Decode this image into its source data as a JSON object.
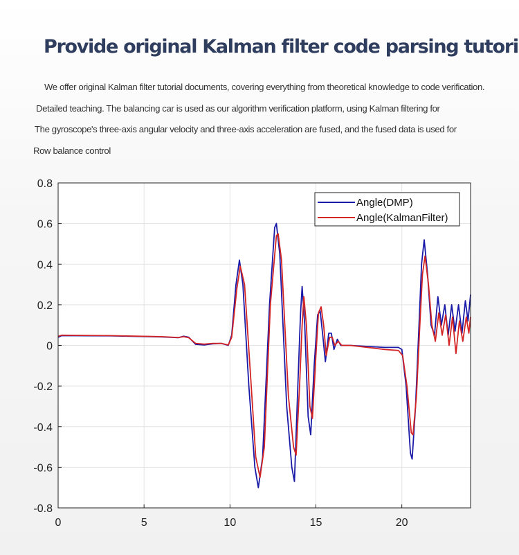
{
  "heading": "Provide original Kalman filter code parsing tutorial",
  "description": [
    "We offer original Kalman filter tutorial documents, covering everything from theoretical knowledge to code verification.",
    "Detailed teaching. The balancing car is used as our algorithm verification platform, using Kalman filtering for",
    "The gyroscope's three-axis angular velocity and three-axis acceleration are fused, and the fused data is used for",
    "Row balance control"
  ],
  "chart_data": {
    "type": "line",
    "title": "",
    "xlabel": "",
    "ylabel": "",
    "xlim": [
      0,
      24
    ],
    "ylim": [
      -0.8,
      0.8
    ],
    "x_ticks": [
      "0",
      "5",
      "10",
      "15",
      "20"
    ],
    "y_ticks": [
      "0.8",
      "0.6",
      "0.4",
      "0.2",
      "0",
      "-0.2",
      "-0.4",
      "-0.6",
      "-0.8"
    ],
    "grid": true,
    "legend_position": "top-right",
    "series": [
      {
        "name": "Angle(DMP)",
        "color": "#1a1aa8",
        "points": [
          [
            0,
            0.04
          ],
          [
            0.2,
            0.048
          ],
          [
            3,
            0.047
          ],
          [
            6,
            0.042
          ],
          [
            7,
            0.038
          ],
          [
            7.3,
            0.045
          ],
          [
            7.6,
            0.04
          ],
          [
            8,
            0.005
          ],
          [
            8.5,
            0.002
          ],
          [
            9,
            0.008
          ],
          [
            9.5,
            0.01
          ],
          [
            9.9,
            0.0
          ],
          [
            10.1,
            0.05
          ],
          [
            10.35,
            0.3
          ],
          [
            10.55,
            0.42
          ],
          [
            10.75,
            0.3
          ],
          [
            11.1,
            -0.2
          ],
          [
            11.45,
            -0.6
          ],
          [
            11.65,
            -0.7
          ],
          [
            11.9,
            -0.55
          ],
          [
            12.3,
            0.2
          ],
          [
            12.6,
            0.58
          ],
          [
            12.7,
            0.6
          ],
          [
            12.9,
            0.45
          ],
          [
            13.3,
            -0.3
          ],
          [
            13.6,
            -0.6
          ],
          [
            13.75,
            -0.67
          ],
          [
            13.95,
            -0.2
          ],
          [
            14.1,
            0.15
          ],
          [
            14.2,
            0.29
          ],
          [
            14.35,
            0.1
          ],
          [
            14.55,
            -0.35
          ],
          [
            14.7,
            -0.44
          ],
          [
            14.9,
            -0.1
          ],
          [
            15.1,
            0.15
          ],
          [
            15.25,
            0.17
          ],
          [
            15.4,
            0.05
          ],
          [
            15.55,
            -0.08
          ],
          [
            15.75,
            0.06
          ],
          [
            15.9,
            0.06
          ],
          [
            16.05,
            -0.02
          ],
          [
            16.25,
            0.03
          ],
          [
            16.45,
            0.0
          ],
          [
            17,
            0.0
          ],
          [
            18,
            -0.005
          ],
          [
            19,
            -0.01
          ],
          [
            19.8,
            -0.01
          ],
          [
            20.0,
            -0.02
          ],
          [
            20.25,
            -0.2
          ],
          [
            20.5,
            -0.53
          ],
          [
            20.6,
            -0.56
          ],
          [
            20.8,
            -0.3
          ],
          [
            21.0,
            0.1
          ],
          [
            21.15,
            0.4
          ],
          [
            21.3,
            0.52
          ],
          [
            21.5,
            0.35
          ],
          [
            21.7,
            0.1
          ],
          [
            21.9,
            0.05
          ],
          [
            22.1,
            0.24
          ],
          [
            22.3,
            0.1
          ],
          [
            22.5,
            0.2
          ],
          [
            22.7,
            0.05
          ],
          [
            22.9,
            0.2
          ],
          [
            23.1,
            0.07
          ],
          [
            23.3,
            0.2
          ],
          [
            23.5,
            0.06
          ],
          [
            23.7,
            0.22
          ],
          [
            23.85,
            0.12
          ],
          [
            24,
            0.25
          ]
        ]
      },
      {
        "name": "Angle(KalmanFilter)",
        "color": "#d42525",
        "points": [
          [
            0,
            0.045
          ],
          [
            0.2,
            0.05
          ],
          [
            3,
            0.048
          ],
          [
            6,
            0.043
          ],
          [
            7,
            0.039
          ],
          [
            7.3,
            0.043
          ],
          [
            7.6,
            0.038
          ],
          [
            8,
            0.01
          ],
          [
            8.5,
            0.006
          ],
          [
            9,
            0.01
          ],
          [
            9.5,
            0.01
          ],
          [
            9.9,
            0.002
          ],
          [
            10.1,
            0.04
          ],
          [
            10.4,
            0.28
          ],
          [
            10.6,
            0.39
          ],
          [
            10.85,
            0.3
          ],
          [
            11.2,
            -0.15
          ],
          [
            11.5,
            -0.55
          ],
          [
            11.75,
            -0.65
          ],
          [
            12.0,
            -0.5
          ],
          [
            12.35,
            0.2
          ],
          [
            12.7,
            0.54
          ],
          [
            12.8,
            0.55
          ],
          [
            13.0,
            0.42
          ],
          [
            13.4,
            -0.25
          ],
          [
            13.7,
            -0.5
          ],
          [
            13.85,
            -0.54
          ],
          [
            14.05,
            -0.2
          ],
          [
            14.2,
            0.1
          ],
          [
            14.3,
            0.24
          ],
          [
            14.45,
            0.1
          ],
          [
            14.65,
            -0.3
          ],
          [
            14.8,
            -0.36
          ],
          [
            15.0,
            -0.05
          ],
          [
            15.15,
            0.16
          ],
          [
            15.3,
            0.19
          ],
          [
            15.45,
            0.1
          ],
          [
            15.6,
            -0.05
          ],
          [
            15.8,
            0.04
          ],
          [
            15.95,
            0.04
          ],
          [
            16.1,
            0.0
          ],
          [
            16.3,
            0.02
          ],
          [
            16.5,
            0.0
          ],
          [
            17,
            0.0
          ],
          [
            18,
            -0.01
          ],
          [
            19,
            -0.02
          ],
          [
            19.8,
            -0.025
          ],
          [
            20.05,
            -0.05
          ],
          [
            20.3,
            -0.2
          ],
          [
            20.55,
            -0.43
          ],
          [
            20.65,
            -0.44
          ],
          [
            20.85,
            -0.25
          ],
          [
            21.05,
            0.1
          ],
          [
            21.2,
            0.35
          ],
          [
            21.35,
            0.44
          ],
          [
            21.55,
            0.3
          ],
          [
            21.75,
            0.1
          ],
          [
            21.95,
            0.02
          ],
          [
            22.15,
            0.16
          ],
          [
            22.35,
            0.05
          ],
          [
            22.55,
            0.15
          ],
          [
            22.75,
            0.0
          ],
          [
            22.95,
            0.14
          ],
          [
            23.15,
            -0.04
          ],
          [
            23.35,
            0.12
          ],
          [
            23.55,
            0.02
          ],
          [
            23.75,
            0.14
          ],
          [
            23.9,
            0.06
          ],
          [
            24,
            0.14
          ]
        ]
      }
    ]
  }
}
